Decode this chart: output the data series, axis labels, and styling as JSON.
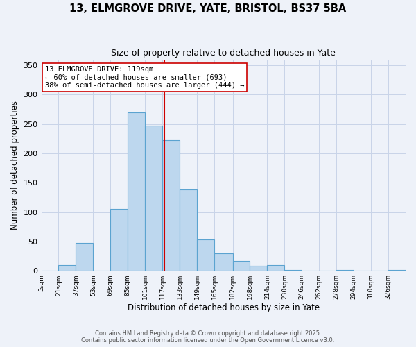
{
  "title": "13, ELMGROVE DRIVE, YATE, BRISTOL, BS37 5BA",
  "subtitle": "Size of property relative to detached houses in Yate",
  "xlabel": "Distribution of detached houses by size in Yate",
  "ylabel": "Number of detached properties",
  "bin_labels": [
    "5sqm",
    "21sqm",
    "37sqm",
    "53sqm",
    "69sqm",
    "85sqm",
    "101sqm",
    "117sqm",
    "133sqm",
    "149sqm",
    "165sqm",
    "182sqm",
    "198sqm",
    "214sqm",
    "230sqm",
    "246sqm",
    "262sqm",
    "278sqm",
    "294sqm",
    "310sqm",
    "326sqm"
  ],
  "bin_edges": [
    5,
    21,
    37,
    53,
    69,
    85,
    101,
    117,
    133,
    149,
    165,
    182,
    198,
    214,
    230,
    246,
    262,
    278,
    294,
    310,
    326,
    342
  ],
  "bar_heights": [
    0,
    10,
    48,
    0,
    105,
    270,
    247,
    222,
    138,
    53,
    30,
    17,
    8,
    10,
    2,
    0,
    0,
    2,
    0,
    0,
    2
  ],
  "bar_color": "#bdd7ee",
  "bar_edge_color": "#5ba3d0",
  "property_size": 119,
  "vline_color": "#cc0000",
  "annotation_line1": "13 ELMGROVE DRIVE: 119sqm",
  "annotation_line2": "← 60% of detached houses are smaller (693)",
  "annotation_line3": "38% of semi-detached houses are larger (444) →",
  "annotation_box_color": "#ffffff",
  "annotation_box_edge": "#cc0000",
  "ylim": [
    0,
    360
  ],
  "yticks": [
    0,
    50,
    100,
    150,
    200,
    250,
    300,
    350
  ],
  "footer_line1": "Contains HM Land Registry data © Crown copyright and database right 2025.",
  "footer_line2": "Contains public sector information licensed under the Open Government Licence v3.0.",
  "background_color": "#eef2f9",
  "plot_background": "#eef2f9",
  "grid_color": "#c8d4e8"
}
